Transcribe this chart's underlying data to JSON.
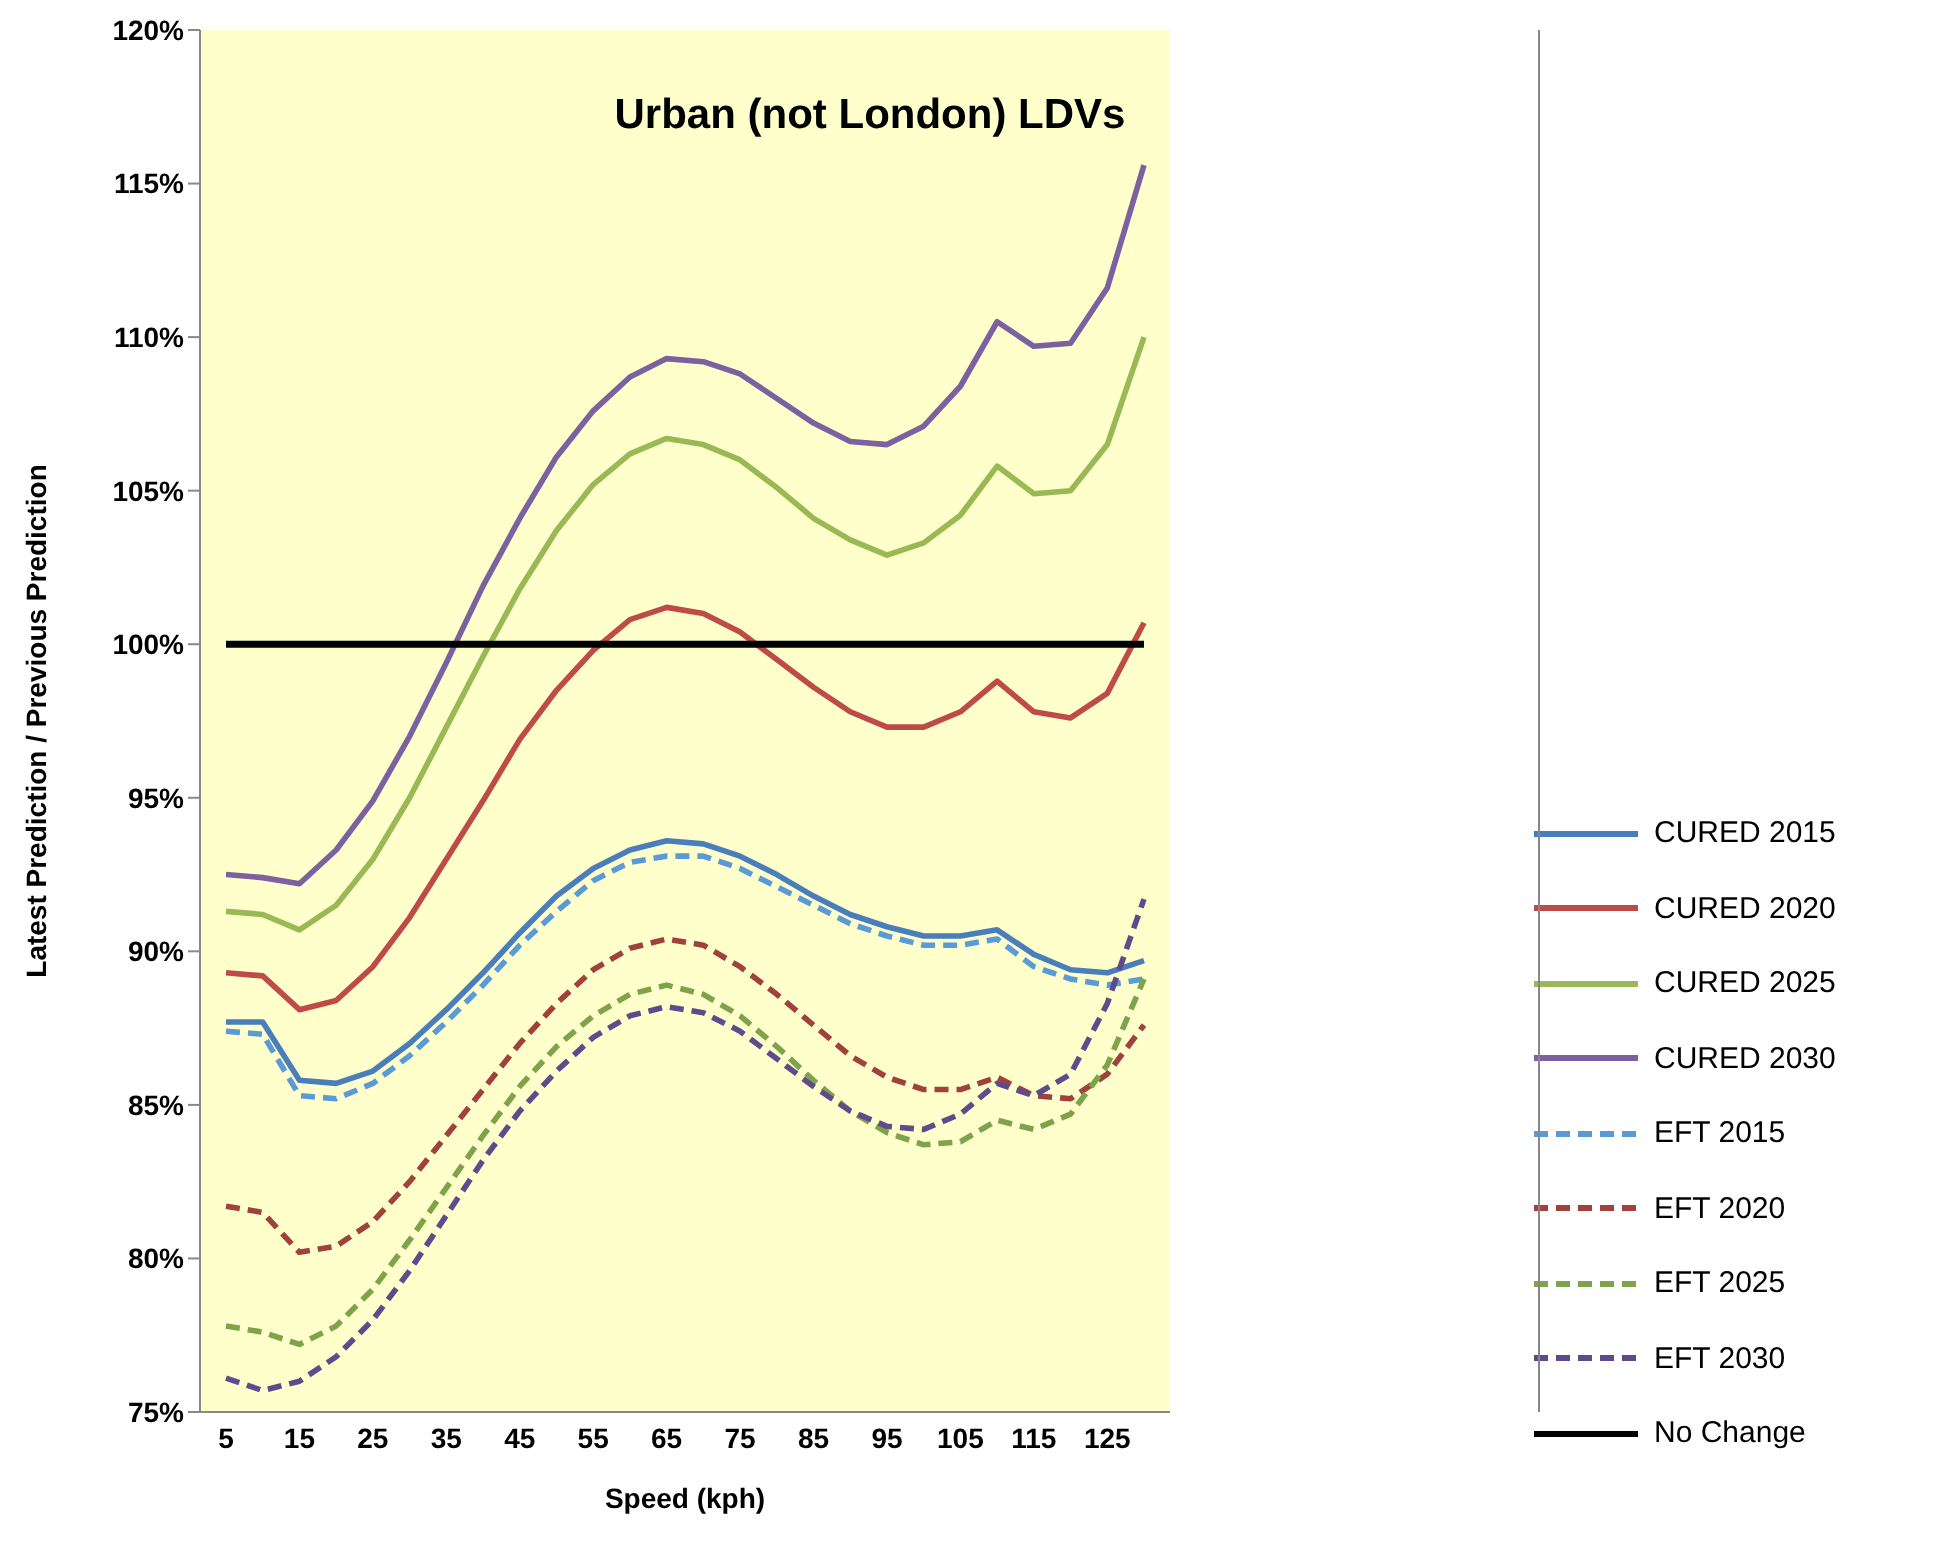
{
  "chart_data": {
    "type": "line",
    "title": "Urban (not London) LDVs",
    "xlabel": "Speed (kph)",
    "ylabel": "Latest Prediction / Previous Prediction",
    "categories": [
      "5",
      null,
      "15",
      null,
      "25",
      null,
      "35",
      null,
      "45",
      null,
      "55",
      null,
      "65",
      null,
      "75",
      null,
      "85",
      null,
      "95",
      null,
      "105",
      null,
      "115",
      null,
      "125",
      null
    ],
    "ylim": [
      75,
      120
    ],
    "yticks": [
      {
        "value": 75,
        "label": "75%"
      },
      {
        "value": 80,
        "label": "80%"
      },
      {
        "value": 85,
        "label": "85%"
      },
      {
        "value": 90,
        "label": "90%"
      },
      {
        "value": 95,
        "label": "95%"
      },
      {
        "value": 100,
        "label": "100%"
      },
      {
        "value": 105,
        "label": "105%"
      },
      {
        "value": 110,
        "label": "110%"
      },
      {
        "value": 115,
        "label": "115%"
      },
      {
        "value": 120,
        "label": "120%"
      }
    ],
    "grid": false,
    "legend": "right",
    "marker": "none",
    "series": [
      {
        "name": "CURED 2015",
        "color": "#4a7ebb",
        "line_style": "solid",
        "values": [
          87.7,
          87.7,
          85.8,
          85.7,
          86.1,
          87.0,
          88.1,
          89.3,
          90.6,
          91.8,
          92.7,
          93.3,
          93.6,
          93.5,
          93.1,
          92.5,
          91.8,
          91.2,
          90.8,
          90.5,
          90.5,
          90.7,
          89.9,
          89.4,
          89.3,
          89.7
        ]
      },
      {
        "name": "CURED 2020",
        "color": "#be4b48",
        "line_style": "solid",
        "values": [
          89.3,
          89.2,
          88.1,
          88.4,
          89.5,
          91.1,
          93.0,
          94.9,
          96.9,
          98.5,
          99.8,
          100.8,
          101.2,
          101.0,
          100.4,
          99.5,
          98.6,
          97.8,
          97.3,
          97.3,
          97.8,
          98.8,
          97.8,
          97.6,
          98.4,
          100.7
        ]
      },
      {
        "name": "CURED 2025",
        "color": "#98b954",
        "line_style": "solid",
        "values": [
          91.3,
          91.2,
          90.7,
          91.5,
          93.0,
          95.0,
          97.3,
          99.6,
          101.8,
          103.7,
          105.2,
          106.2,
          106.7,
          106.5,
          106.0,
          105.1,
          104.1,
          103.4,
          102.9,
          103.3,
          104.2,
          105.8,
          104.9,
          105.0,
          106.5,
          110.0
        ]
      },
      {
        "name": "CURED 2030",
        "color": "#7d60a0",
        "line_style": "solid",
        "values": [
          92.5,
          92.4,
          92.2,
          93.3,
          94.9,
          97.0,
          99.4,
          101.9,
          104.1,
          106.1,
          107.6,
          108.7,
          109.3,
          109.2,
          108.8,
          108.0,
          107.2,
          106.6,
          106.5,
          107.1,
          108.4,
          110.5,
          109.7,
          109.8,
          111.6,
          115.6
        ]
      },
      {
        "name": "EFT 2015",
        "color": "#5b9bd5",
        "line_style": "dashed",
        "values": [
          87.4,
          87.3,
          85.3,
          85.2,
          85.7,
          86.6,
          87.7,
          88.9,
          90.2,
          91.3,
          92.3,
          92.9,
          93.1,
          93.1,
          92.7,
          92.1,
          91.5,
          90.9,
          90.5,
          90.2,
          90.2,
          90.4,
          89.5,
          89.1,
          88.9,
          89.1
        ]
      },
      {
        "name": "EFT 2020",
        "color": "#a0413c",
        "line_style": "dashed",
        "values": [
          81.7,
          81.5,
          80.2,
          80.4,
          81.2,
          82.5,
          84.0,
          85.5,
          87.0,
          88.3,
          89.4,
          90.1,
          90.4,
          90.2,
          89.5,
          88.6,
          87.6,
          86.6,
          85.9,
          85.5,
          85.5,
          85.9,
          85.3,
          85.2,
          86.0,
          87.6
        ]
      },
      {
        "name": "EFT 2025",
        "color": "#7fa34a",
        "line_style": "dashed",
        "values": [
          77.8,
          77.6,
          77.2,
          77.8,
          79.0,
          80.6,
          82.3,
          84.0,
          85.6,
          86.9,
          87.9,
          88.6,
          88.9,
          88.6,
          87.9,
          86.9,
          85.8,
          84.8,
          84.1,
          83.7,
          83.8,
          84.5,
          84.2,
          84.7,
          86.3,
          89.1
        ]
      },
      {
        "name": "EFT 2030",
        "color": "#5f4b8b",
        "line_style": "dashed",
        "values": [
          76.1,
          75.7,
          76.0,
          76.8,
          78.0,
          79.6,
          81.4,
          83.2,
          84.8,
          86.1,
          87.2,
          87.9,
          88.2,
          88.0,
          87.4,
          86.5,
          85.6,
          84.8,
          84.3,
          84.2,
          84.7,
          85.7,
          85.3,
          86.0,
          88.3,
          91.7
        ]
      },
      {
        "name": "No Change",
        "color": "#000000",
        "line_style": "solid",
        "values": [
          100,
          100,
          100,
          100,
          100,
          100,
          100,
          100,
          100,
          100,
          100,
          100,
          100,
          100,
          100,
          100,
          100,
          100,
          100,
          100,
          100,
          100,
          100,
          100,
          100,
          100
        ]
      }
    ]
  }
}
